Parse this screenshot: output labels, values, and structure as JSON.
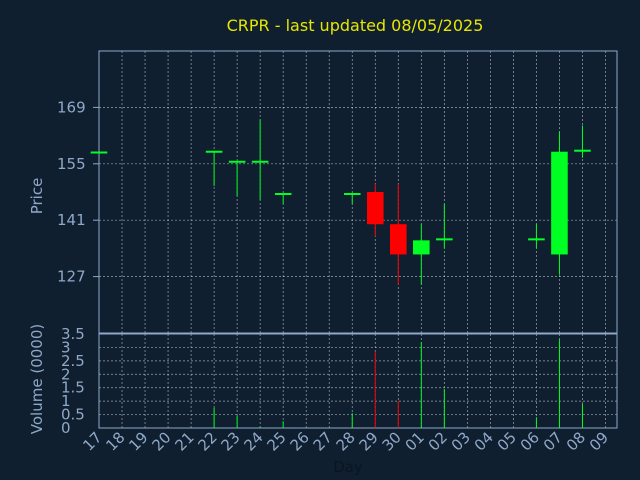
{
  "title": "CRPR - last updated 08/05/2025",
  "chart_data": [
    {
      "type": "candlestick",
      "ylabel": "Price",
      "ylim": [
        113,
        183
      ],
      "yticks": [
        127,
        141,
        155,
        169
      ],
      "categories": [
        "17",
        "18",
        "19",
        "20",
        "21",
        "22",
        "23",
        "24",
        "25",
        "26",
        "27",
        "28",
        "29",
        "30",
        "01",
        "02",
        "03",
        "04",
        "05",
        "06",
        "07",
        "08",
        "09"
      ],
      "up_color": "#00ff22",
      "down_color": "#ff0000",
      "candles": [
        {
          "x": "17",
          "open": 157.8,
          "high": 157.8,
          "low": 157.8,
          "close": 157.8
        },
        {
          "x": "22",
          "open": 158.0,
          "high": 158.0,
          "low": 149.5,
          "close": 158.0
        },
        {
          "x": "23",
          "open": 155.5,
          "high": 155.5,
          "low": 147.0,
          "close": 155.5
        },
        {
          "x": "24",
          "open": 155.5,
          "high": 166.0,
          "low": 146.0,
          "close": 155.5
        },
        {
          "x": "25",
          "open": 147.5,
          "high": 147.5,
          "low": 145.0,
          "close": 147.5
        },
        {
          "x": "28",
          "open": 147.5,
          "high": 147.5,
          "low": 145.0,
          "close": 147.5
        },
        {
          "x": "29",
          "open": 148.0,
          "high": 150.0,
          "low": 137.0,
          "close": 140.0
        },
        {
          "x": "30",
          "open": 140.0,
          "high": 150.0,
          "low": 125.0,
          "close": 132.5
        },
        {
          "x": "01",
          "open": 132.5,
          "high": 140.0,
          "low": 125.0,
          "close": 136.0
        },
        {
          "x": "02",
          "open": 136.0,
          "high": 145.0,
          "low": 134.0,
          "close": 136.5
        },
        {
          "x": "06",
          "open": 136.0,
          "high": 140.0,
          "low": 134.0,
          "close": 136.5
        },
        {
          "x": "07",
          "open": 132.5,
          "high": 163.0,
          "low": 127.5,
          "close": 158.0
        },
        {
          "x": "08",
          "open": 158.0,
          "high": 164.5,
          "low": 156.5,
          "close": 158.5
        }
      ]
    },
    {
      "type": "bar",
      "ylabel": "Volume (0000)",
      "xlabel": "Day",
      "ylim": [
        0,
        3.5
      ],
      "ytick_labels": [
        "0",
        "0.5",
        "1",
        "1.5",
        "2",
        "2.5",
        "3",
        "3.5"
      ],
      "categories": [
        "17",
        "18",
        "19",
        "20",
        "21",
        "22",
        "23",
        "24",
        "25",
        "26",
        "27",
        "28",
        "29",
        "30",
        "01",
        "02",
        "03",
        "04",
        "05",
        "06",
        "07",
        "08",
        "09"
      ],
      "bars": [
        {
          "x": "17",
          "value": 0.0,
          "color": "#00ff22"
        },
        {
          "x": "22",
          "value": 0.75,
          "color": "#00ff22"
        },
        {
          "x": "23",
          "value": 0.45,
          "color": "#00ff22"
        },
        {
          "x": "24",
          "value": 0.05,
          "color": "#00ff22"
        },
        {
          "x": "25",
          "value": 0.25,
          "color": "#00ff22"
        },
        {
          "x": "28",
          "value": 0.55,
          "color": "#00ff22"
        },
        {
          "x": "29",
          "value": 2.85,
          "color": "#ff0000"
        },
        {
          "x": "30",
          "value": 1.0,
          "color": "#ff0000"
        },
        {
          "x": "01",
          "value": 3.2,
          "color": "#00ff22"
        },
        {
          "x": "02",
          "value": 1.45,
          "color": "#00ff22"
        },
        {
          "x": "06",
          "value": 0.4,
          "color": "#00ff22"
        },
        {
          "x": "07",
          "value": 3.3,
          "color": "#00ff22"
        },
        {
          "x": "08",
          "value": 0.9,
          "color": "#00ff22"
        }
      ]
    }
  ]
}
